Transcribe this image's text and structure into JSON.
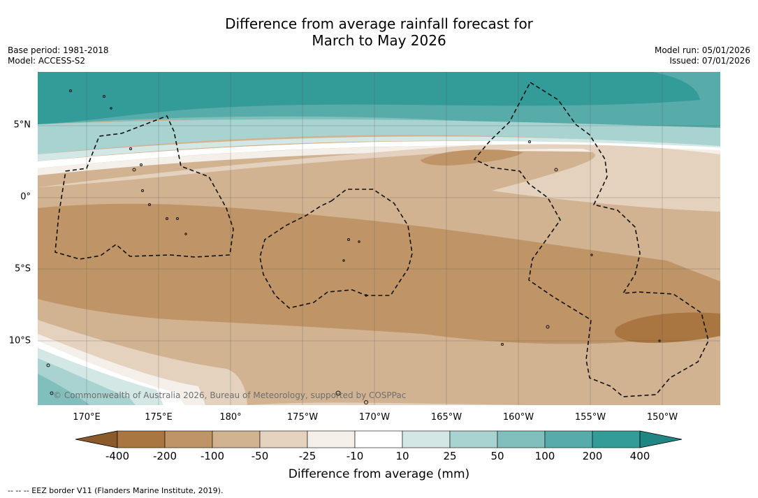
{
  "title": {
    "line1": "Difference from average rainfall forecast for",
    "line2": "March to May 2026"
  },
  "meta": {
    "base_period": "Base period: 1981-2018",
    "model": "Model: ACCESS-S2",
    "model_run": "Model run: 05/01/2026",
    "issued": "Issued: 07/01/2026"
  },
  "map": {
    "lat_labels": [
      "5°N",
      "0°",
      "5°S",
      "10°S"
    ],
    "lon_labels": [
      "170°E",
      "175°E",
      "180°",
      "175°W",
      "170°W",
      "165°W",
      "160°W",
      "155°W",
      "150°W"
    ],
    "copyright": "© Commonwealth of Australia 2026, Bureau of Meteorology, supported by COSPPac"
  },
  "colorbar": {
    "labels": [
      "-400",
      "-200",
      "-100",
      "-50",
      "-25",
      "-10",
      "10",
      "25",
      "50",
      "100",
      "200",
      "400"
    ],
    "colors": [
      "#a97540",
      "#bf9467",
      "#d1b291",
      "#e4d2bf",
      "#f4efe9",
      "#ffffff",
      "#d3e8e5",
      "#a9d3d0",
      "#80bfbc",
      "#57aba9",
      "#339b98",
      "#208684"
    ],
    "title": "Difference from average (mm)"
  },
  "footnote": "--  --  -- EEZ border V11 (Flanders Marine Institute, 2019)."
}
